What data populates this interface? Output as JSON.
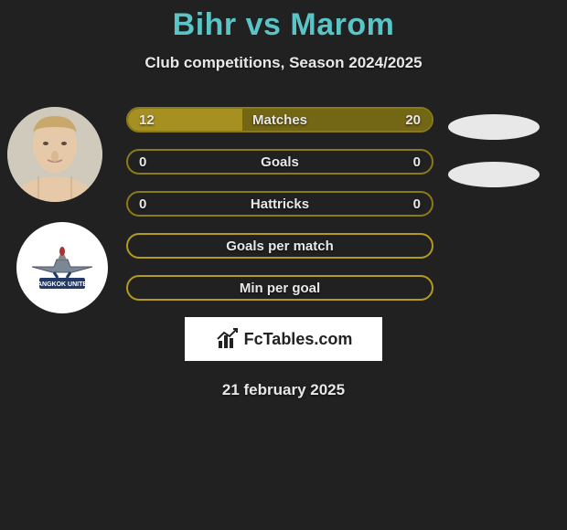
{
  "title_left": "Bihr",
  "title_vs": "vs",
  "title_right": "Marom",
  "subtitle": "Club competitions, Season 2024/2025",
  "date": "21 february 2025",
  "logo_text": "FcTables.com",
  "colors": {
    "accent": "#59c5c7",
    "bar_border_data": "#8b7a18",
    "bar_fill_left": "#a59021",
    "bar_fill_right": "#736614",
    "bar_border_empty": "#b29b1e",
    "bg": "#212121",
    "text": "#e8e8e8"
  },
  "bars": [
    {
      "label": "Matches",
      "left": "12",
      "right": "20",
      "left_pct": 37.5,
      "right_pct": 62.5,
      "has_fill": true
    },
    {
      "label": "Goals",
      "left": "0",
      "right": "0",
      "left_pct": 0,
      "right_pct": 0,
      "has_fill": true
    },
    {
      "label": "Hattricks",
      "left": "0",
      "right": "0",
      "left_pct": 0,
      "right_pct": 0,
      "has_fill": true
    },
    {
      "label": "Goals per match",
      "left": "",
      "right": "",
      "left_pct": 0,
      "right_pct": 0,
      "has_fill": false
    },
    {
      "label": "Min per goal",
      "left": "",
      "right": "",
      "left_pct": 0,
      "right_pct": 0,
      "has_fill": false
    }
  ],
  "player_left": {
    "avatar": "photo",
    "club": "Bangkok United"
  }
}
